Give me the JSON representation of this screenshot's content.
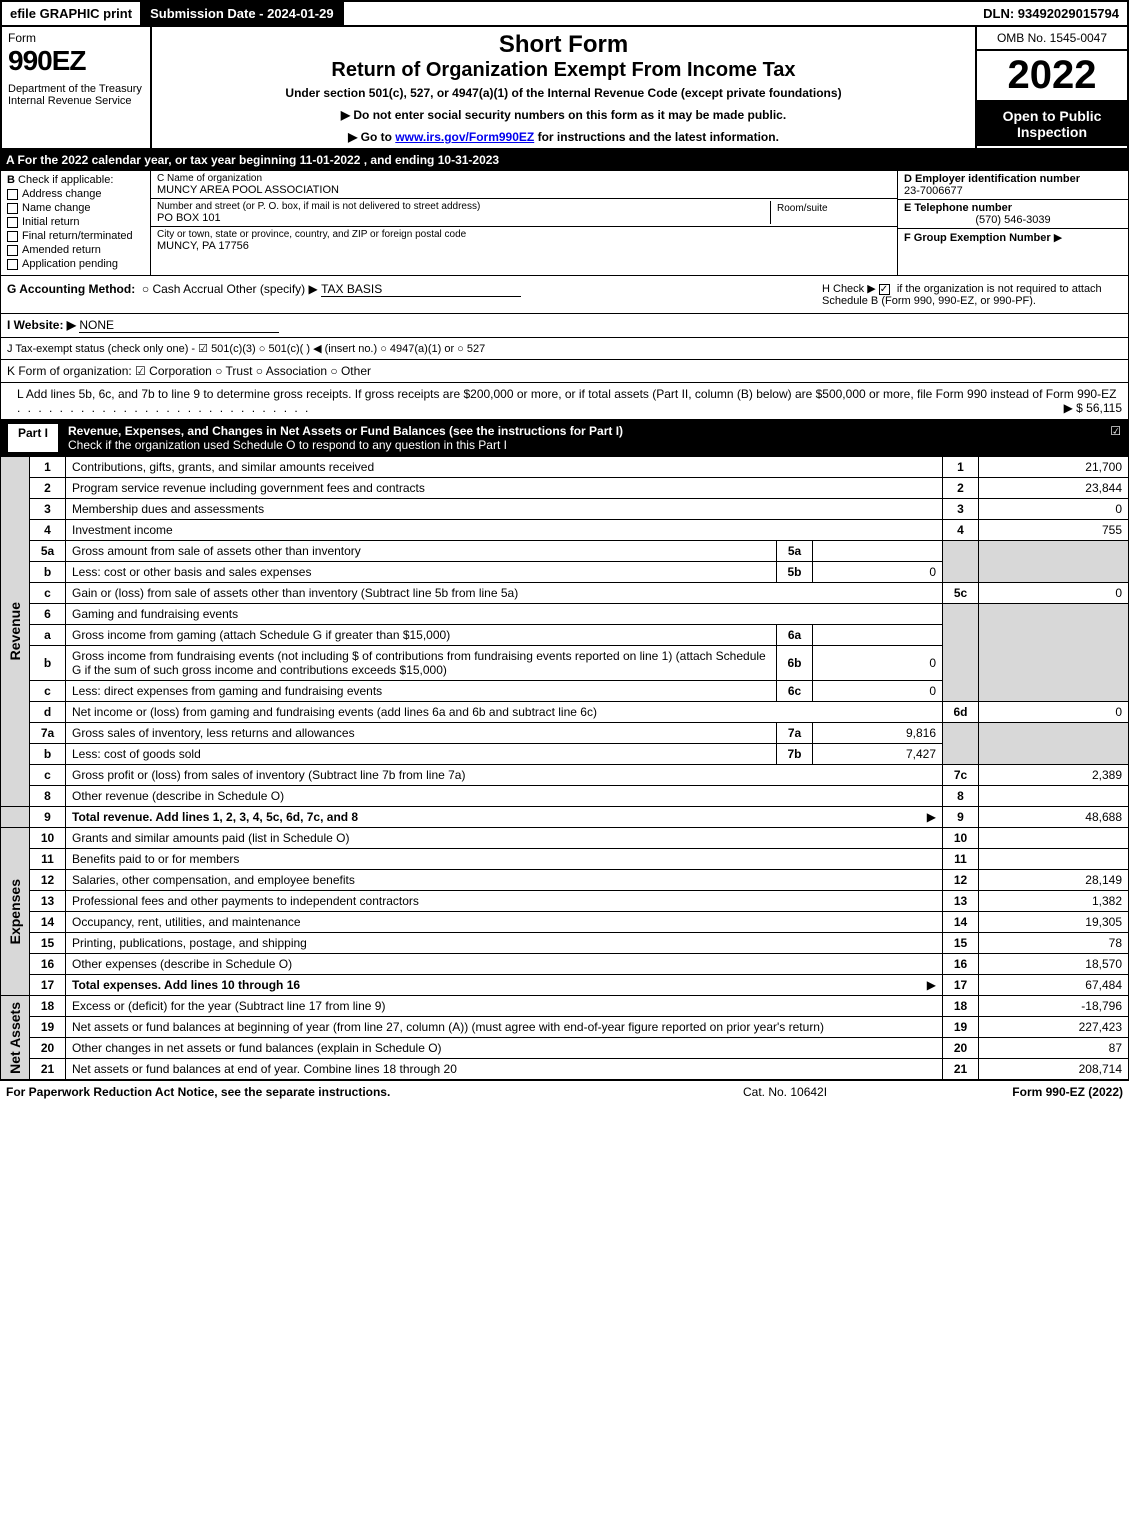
{
  "topbar": {
    "print": "efile GRAPHIC print",
    "subm": "Submission Date - 2024-01-29",
    "dln": "DLN: 93492029015794"
  },
  "header": {
    "form": "Form",
    "num": "990EZ",
    "dept": "Department of the Treasury\nInternal Revenue Service",
    "title1": "Short Form",
    "title2": "Return of Organization Exempt From Income Tax",
    "title3": "Under section 501(c), 527, or 4947(a)(1) of the Internal Revenue Code (except private foundations)",
    "note1": "▶ Do not enter social security numbers on this form as it may be made public.",
    "note2_pre": "▶ Go to ",
    "note2_link": "www.irs.gov/Form990EZ",
    "note2_post": " for instructions and the latest information.",
    "omb": "OMB No. 1545-0047",
    "year": "2022",
    "insp": "Open to Public Inspection"
  },
  "rowA": "A  For the 2022 calendar year, or tax year beginning 11-01-2022 , and ending 10-31-2023",
  "B": {
    "label": "B",
    "sub": "Check if applicable:",
    "opts": [
      "Address change",
      "Name change",
      "Initial return",
      "Final return/terminated",
      "Amended return",
      "Application pending"
    ]
  },
  "C": {
    "nameLbl": "C Name of organization",
    "name": "MUNCY AREA POOL ASSOCIATION",
    "addrLbl": "Number and street (or P. O. box, if mail is not delivered to street address)",
    "addr": "PO BOX 101",
    "roomLbl": "Room/suite",
    "cityLbl": "City or town, state or province, country, and ZIP or foreign postal code",
    "city": "MUNCY, PA  17756"
  },
  "D": {
    "einLbl": "D Employer identification number",
    "ein": "23-7006677",
    "telLbl": "E Telephone number",
    "tel": "(570) 546-3039",
    "grpLbl": "F Group Exemption Number",
    "grpArrow": "▶"
  },
  "G": {
    "label": "G Accounting Method:",
    "opts": "Cash    Accrual    Other (specify) ▶",
    "val": "TAX BASIS"
  },
  "H": {
    "text1": "H  Check ▶",
    "text2": " if the organization is not required to attach Schedule B (Form 990, 990-EZ, or 990-PF)."
  },
  "I": {
    "label": "I Website: ▶",
    "val": "NONE"
  },
  "J": {
    "text": "J Tax-exempt status (check only one) -  ☑ 501(c)(3)  ○ 501(c)(  ) ◀ (insert no.)  ○ 4947(a)(1) or  ○ 527"
  },
  "K": {
    "text": "K Form of organization:   ☑ Corporation   ○ Trust   ○ Association   ○ Other"
  },
  "L": {
    "text": "L Add lines 5b, 6c, and 7b to line 9 to determine gross receipts. If gross receipts are $200,000 or more, or if total assets (Part II, column (B) below) are $500,000 or more, file Form 990 instead of Form 990-EZ",
    "amt": "▶ $ 56,115"
  },
  "part1": {
    "num": "Part I",
    "title": "Revenue, Expenses, and Changes in Net Assets or Fund Balances (see the instructions for Part I)",
    "sub": "Check if the organization used Schedule O to respond to any question in this Part I",
    "check": "☑"
  },
  "sides": {
    "rev": "Revenue",
    "exp": "Expenses",
    "na": "Net Assets"
  },
  "lines": {
    "l1": {
      "n": "1",
      "d": "Contributions, gifts, grants, and similar amounts received",
      "r": "1",
      "v": "21,700"
    },
    "l2": {
      "n": "2",
      "d": "Program service revenue including government fees and contracts",
      "r": "2",
      "v": "23,844"
    },
    "l3": {
      "n": "3",
      "d": "Membership dues and assessments",
      "r": "3",
      "v": "0"
    },
    "l4": {
      "n": "4",
      "d": "Investment income",
      "r": "4",
      "v": "755"
    },
    "l5a": {
      "n": "5a",
      "d": "Gross amount from sale of assets other than inventory",
      "sn": "5a",
      "sv": ""
    },
    "l5b": {
      "n": "b",
      "d": "Less: cost or other basis and sales expenses",
      "sn": "5b",
      "sv": "0"
    },
    "l5c": {
      "n": "c",
      "d": "Gain or (loss) from sale of assets other than inventory (Subtract line 5b from line 5a)",
      "r": "5c",
      "v": "0"
    },
    "l6": {
      "n": "6",
      "d": "Gaming and fundraising events"
    },
    "l6a": {
      "n": "a",
      "d": "Gross income from gaming (attach Schedule G if greater than $15,000)",
      "sn": "6a",
      "sv": ""
    },
    "l6b": {
      "n": "b",
      "d": "Gross income from fundraising events (not including $                   of contributions from fundraising events reported on line 1) (attach Schedule G if the sum of such gross income and contributions exceeds $15,000)",
      "sn": "6b",
      "sv": "0"
    },
    "l6c": {
      "n": "c",
      "d": "Less: direct expenses from gaming and fundraising events",
      "sn": "6c",
      "sv": "0"
    },
    "l6d": {
      "n": "d",
      "d": "Net income or (loss) from gaming and fundraising events (add lines 6a and 6b and subtract line 6c)",
      "r": "6d",
      "v": "0"
    },
    "l7a": {
      "n": "7a",
      "d": "Gross sales of inventory, less returns and allowances",
      "sn": "7a",
      "sv": "9,816"
    },
    "l7b": {
      "n": "b",
      "d": "Less: cost of goods sold",
      "sn": "7b",
      "sv": "7,427"
    },
    "l7c": {
      "n": "c",
      "d": "Gross profit or (loss) from sales of inventory (Subtract line 7b from line 7a)",
      "r": "7c",
      "v": "2,389"
    },
    "l8": {
      "n": "8",
      "d": "Other revenue (describe in Schedule O)",
      "r": "8",
      "v": ""
    },
    "l9": {
      "n": "9",
      "d": "Total revenue. Add lines 1, 2, 3, 4, 5c, 6d, 7c, and 8",
      "r": "9",
      "v": "48,688",
      "arrow": "▶"
    },
    "l10": {
      "n": "10",
      "d": "Grants and similar amounts paid (list in Schedule O)",
      "r": "10",
      "v": ""
    },
    "l11": {
      "n": "11",
      "d": "Benefits paid to or for members",
      "r": "11",
      "v": ""
    },
    "l12": {
      "n": "12",
      "d": "Salaries, other compensation, and employee benefits",
      "r": "12",
      "v": "28,149"
    },
    "l13": {
      "n": "13",
      "d": "Professional fees and other payments to independent contractors",
      "r": "13",
      "v": "1,382"
    },
    "l14": {
      "n": "14",
      "d": "Occupancy, rent, utilities, and maintenance",
      "r": "14",
      "v": "19,305"
    },
    "l15": {
      "n": "15",
      "d": "Printing, publications, postage, and shipping",
      "r": "15",
      "v": "78"
    },
    "l16": {
      "n": "16",
      "d": "Other expenses (describe in Schedule O)",
      "r": "16",
      "v": "18,570"
    },
    "l17": {
      "n": "17",
      "d": "Total expenses. Add lines 10 through 16",
      "r": "17",
      "v": "67,484",
      "arrow": "▶"
    },
    "l18": {
      "n": "18",
      "d": "Excess or (deficit) for the year (Subtract line 17 from line 9)",
      "r": "18",
      "v": "-18,796"
    },
    "l19": {
      "n": "19",
      "d": "Net assets or fund balances at beginning of year (from line 27, column (A)) (must agree with end-of-year figure reported on prior year's return)",
      "r": "19",
      "v": "227,423"
    },
    "l20": {
      "n": "20",
      "d": "Other changes in net assets or fund balances (explain in Schedule O)",
      "r": "20",
      "v": "87"
    },
    "l21": {
      "n": "21",
      "d": "Net assets or fund balances at end of year. Combine lines 18 through 20",
      "r": "21",
      "v": "208,714"
    }
  },
  "footer": {
    "f1": "For Paperwork Reduction Act Notice, see the separate instructions.",
    "f2": "Cat. No. 10642I",
    "f3": "Form 990-EZ (2022)"
  },
  "colors": {
    "black": "#000000",
    "white": "#ffffff",
    "shade": "#d8d8d8",
    "link": "#0000ee"
  }
}
